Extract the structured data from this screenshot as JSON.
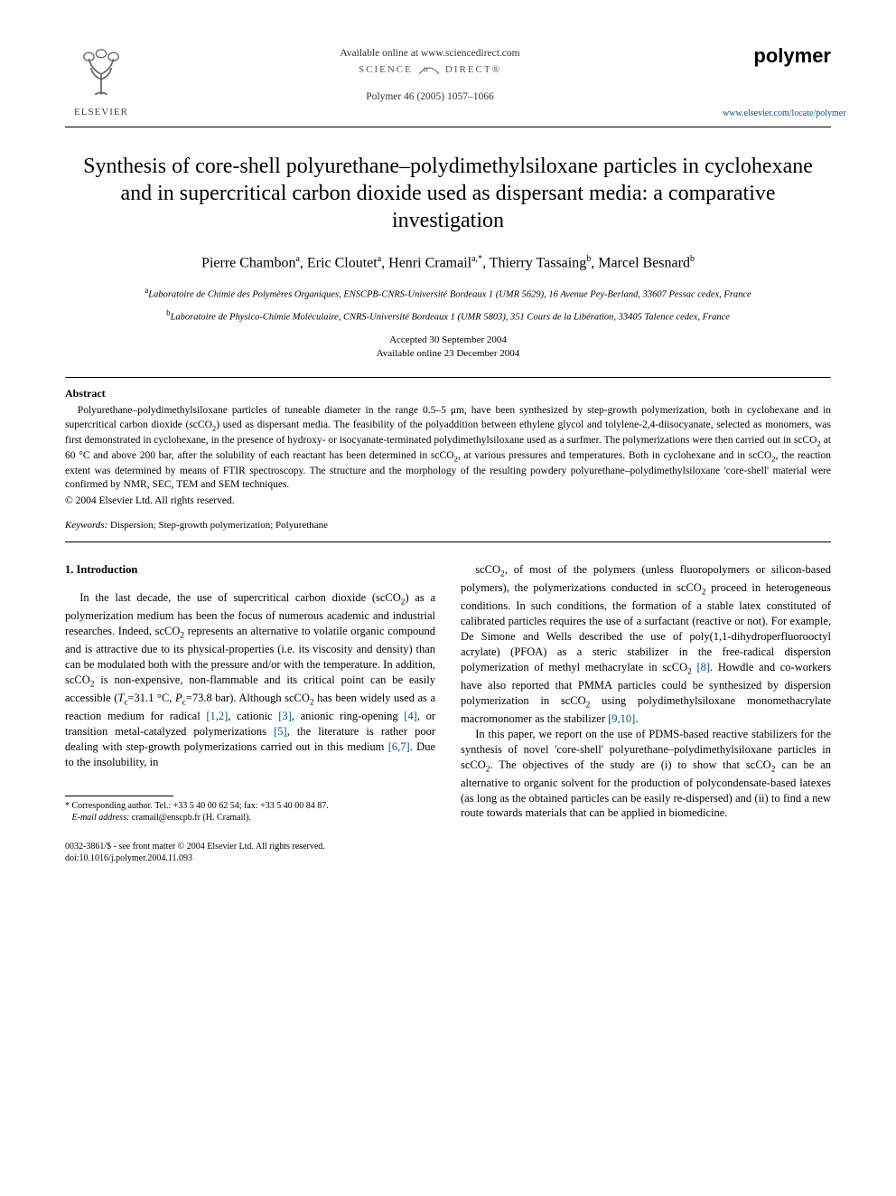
{
  "header": {
    "available_line": "Available online at www.sciencedirect.com",
    "sd_left": "SCIENCE",
    "sd_right": "DIRECT®",
    "citation": "Polymer 46 (2005) 1057–1066",
    "publisher_name": "ELSEVIER",
    "journal_name": "polymer",
    "journal_url": "www.elsevier.com/locate/polymer"
  },
  "title": "Synthesis of core-shell polyurethane–polydimethylsiloxane particles in cyclohexane and in supercritical carbon dioxide used as dispersant media: a comparative investigation",
  "authors_html": "Pierre Chambon<sup>a</sup>, Eric Cloutet<sup>a</sup>, Henri Cramail<sup>a,*</sup>, Thierry Tassaing<sup>b</sup>, Marcel Besnard<sup>b</sup>",
  "affiliations": {
    "a": "Laboratoire de Chimie des Polymères Organiques, ENSCPB-CNRS-Université Bordeaux 1 (UMR 5629), 16 Avenue Pey-Berland, 33607 Pessac cedex, France",
    "b": "Laboratoire de Physico-Chimie Moléculaire, CNRS-Université Bordeaux 1 (UMR 5803), 351 Cours de la Libération, 33405 Talence cedex, France"
  },
  "dates": {
    "accepted": "Accepted 30 September 2004",
    "online": "Available online 23 December 2004"
  },
  "abstract": {
    "heading": "Abstract",
    "body_html": "Polyurethane–polydimethylsiloxane particles of tuneable diameter in the range 0.5–5 μm, have been synthesized by step-growth polymerization, both in cyclohexane and in supercritical carbon dioxide (scCO<sub>2</sub>) used as dispersant media. The feasibility of the polyaddition between ethylene glycol and tolylene-2,4-diisocyanate, selected as monomers, was first demonstrated in cyclohexane, in the presence of hydroxy- or isocyanate-terminated polydimethylsiloxane used as a surfmer. The polymerizations were then carried out in scCO<sub>2</sub> at 60 °C and above 200 bar, after the solubility of each reactant has been determined in scCO<sub>2</sub>, at various pressures and temperatures. Both in cyclohexane and in scCO<sub>2</sub>, the reaction extent was determined by means of FTIR spectroscopy. The structure and the morphology of the resulting powdery polyurethane–polydimethylsiloxane 'core-shell' material were confirmed by NMR, SEC, TEM and SEM techniques.",
    "copyright": "© 2004 Elsevier Ltd. All rights reserved."
  },
  "keywords": {
    "label": "Keywords:",
    "text": "Dispersion; Step-growth polymerization; Polyurethane"
  },
  "intro": {
    "heading": "1. Introduction",
    "col1_p1_html": "In the last decade, the use of supercritical carbon dioxide (scCO<sub>2</sub>) as a polymerization medium has been the focus of numerous academic and industrial researches. Indeed, scCO<sub>2</sub> represents an alternative to volatile organic compound and is attractive due to its physical-properties (i.e. its viscosity and density) than can be modulated both with the pressure and/or with the temperature. In addition, scCO<sub>2</sub> is non-expensive, non-flammable and its critical point can be easily accessible (<i>T</i><sub>c</sub>=31.1 °C, <i>P</i><sub>c</sub>=73.8 bar). Although scCO<sub>2</sub> has been widely used as a reaction medium for radical <span class=\"ref\">[1,2]</span>, cationic <span class=\"ref\">[3]</span>, anionic ring-opening <span class=\"ref\">[4]</span>, or transition metal-catalyzed polymerizations <span class=\"ref\">[5]</span>, the literature is rather poor dealing with step-growth polymerizations carried out in this medium <span class=\"ref\">[6,7]</span>. Due to the insolubility, in",
    "col2_p1_html": "scCO<sub>2</sub>, of most of the polymers (unless fluoropolymers or silicon-based polymers), the polymerizations conducted in scCO<sub>2</sub> proceed in heterogeneous conditions. In such conditions, the formation of a stable latex constituted of calibrated particles requires the use of a surfactant (reactive or not). For example, De Simone and Wells described the use of poly(1,1-dihydroperfluorooctyl acrylate) (PFOA) as a steric stabilizer in the free-radical dispersion polymerization of methyl methacrylate in scCO<sub>2</sub> <span class=\"ref\">[8]</span>. Howdle and co-workers have also reported that PMMA particles could be synthesized by dispersion polymerization in scCO<sub>2</sub> using polydimethylsiloxane monomethacrylate macromonomer as the stabilizer <span class=\"ref\">[9,10]</span>.",
    "col2_p2_html": "In this paper, we report on the use of PDMS-based reactive stabilizers for the synthesis of novel 'core-shell' polyurethane–polydimethylsiloxane particles in scCO<sub>2</sub>. The objectives of the study are (i) to show that scCO<sub>2</sub> can be an alternative to organic solvent for the production of polycondensate-based latexes (as long as the obtained particles can be easily re-dispersed) and (ii) to find a new route towards materials that can be applied in biomedicine."
  },
  "footnote": {
    "corr": "* Corresponding author. Tel.: +33 5 40 00 62 54; fax: +33 5 40 00 84 87.",
    "email_label": "E-mail address:",
    "email": "cramail@enscpb.fr (H. Cramail)."
  },
  "footer": {
    "line1": "0032-3861/$ - see front matter © 2004 Elsevier Ltd. All rights reserved.",
    "line2": "doi:10.1016/j.polymer.2004.11.093"
  },
  "colors": {
    "link": "#0050a0",
    "text": "#000000",
    "bg": "#ffffff"
  }
}
